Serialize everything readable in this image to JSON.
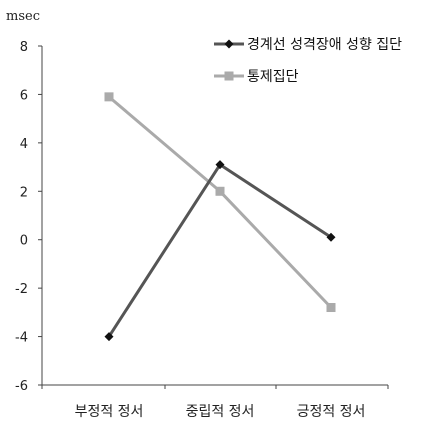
{
  "chart_data": {
    "type": "line",
    "title": "",
    "xlabel": "",
    "ylabel": "msec",
    "categories": [
      "부정적 정서",
      "중립적 정서",
      "긍정적 정서"
    ],
    "ylim": [
      -6,
      8
    ],
    "yticks": [
      -6,
      -4,
      -2,
      0,
      2,
      4,
      6,
      8
    ],
    "grid": false,
    "legend_position": "top-right",
    "series": [
      {
        "name": "경계선 성격장애 성향 집단",
        "values": [
          -4.0,
          3.1,
          0.1
        ],
        "color": "#555555",
        "marker": "diamond"
      },
      {
        "name": "통제집단",
        "values": [
          5.9,
          2.0,
          -2.8
        ],
        "color": "#aaaaaa",
        "marker": "square"
      }
    ]
  }
}
